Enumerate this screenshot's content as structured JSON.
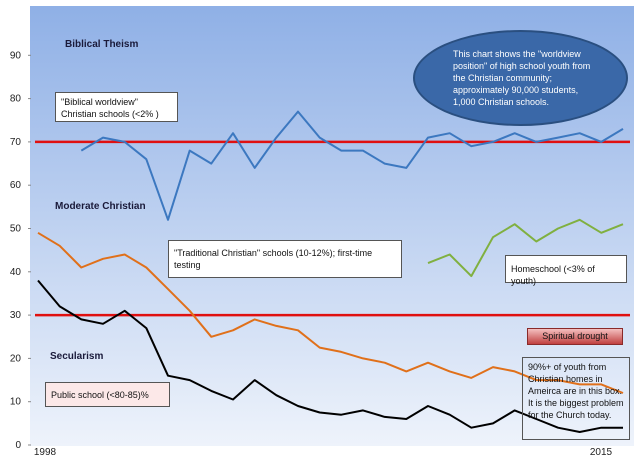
{
  "chart_data": {
    "type": "line",
    "categories": [
      "1998",
      null,
      null,
      null,
      null,
      null,
      null,
      null,
      null,
      null,
      null,
      null,
      null,
      null,
      null,
      null,
      null,
      null,
      null,
      null,
      null,
      null,
      null,
      null,
      null,
      null,
      null,
      "2015"
    ],
    "series": [
      {
        "name": "Biblical worldview",
        "color": "#3c78c0",
        "values": [
          null,
          null,
          68,
          71,
          70,
          66,
          52,
          68,
          65,
          72,
          64,
          71,
          77,
          71,
          68,
          68,
          65,
          64,
          71,
          72,
          69,
          70,
          72,
          70,
          71,
          72,
          70,
          73
        ]
      },
      {
        "name": "Traditional Christian",
        "color": "#e0701a",
        "values": [
          49,
          46,
          41,
          43,
          44,
          41,
          36,
          31,
          25,
          26.5,
          29,
          27.5,
          26.5,
          22.5,
          21.5,
          20,
          19,
          17,
          19,
          17,
          15.5,
          18,
          17,
          15,
          15,
          14,
          14,
          12
        ]
      },
      {
        "name": "Homeschool",
        "color": "#80b040",
        "values": [
          null,
          null,
          null,
          null,
          null,
          null,
          null,
          null,
          null,
          null,
          null,
          null,
          null,
          null,
          null,
          null,
          null,
          null,
          42,
          44,
          39,
          48,
          51,
          47,
          50,
          52,
          49,
          51
        ]
      },
      {
        "name": "Public school",
        "color": "#000000",
        "values": [
          38,
          32,
          29,
          28,
          31,
          27,
          16,
          15,
          12.5,
          10.5,
          15,
          11.5,
          9,
          7.5,
          7,
          8,
          6.5,
          6,
          9,
          7,
          4,
          5,
          8,
          6,
          4,
          3,
          4,
          4
        ]
      }
    ],
    "reference_lines": [
      70,
      30
    ],
    "reference_color": "#e01010",
    "ylim": [
      0,
      100
    ],
    "yticks": [
      0,
      10,
      20,
      30,
      40,
      50,
      60,
      70,
      80,
      90
    ],
    "zones": [
      "Biblical Theism",
      "Moderate Christian",
      "Secularism"
    ],
    "annotations": [
      "\"Biblical worldview\" Christian schools (<2% )",
      "\"Traditional Christian\" schools (10-12%); first-time testing",
      "Homeschool (<3% of youth)",
      "Public school (<80-85)%",
      "90%+ of youth from Christian homes in Ameirca are in this box. It is the biggest problem for the Church today.",
      "Spiritual drought",
      "This chart shows the \"worldview position\" of high school youth from the Christian community; approximately 90,000 students, 1,000 Christian schools."
    ]
  }
}
